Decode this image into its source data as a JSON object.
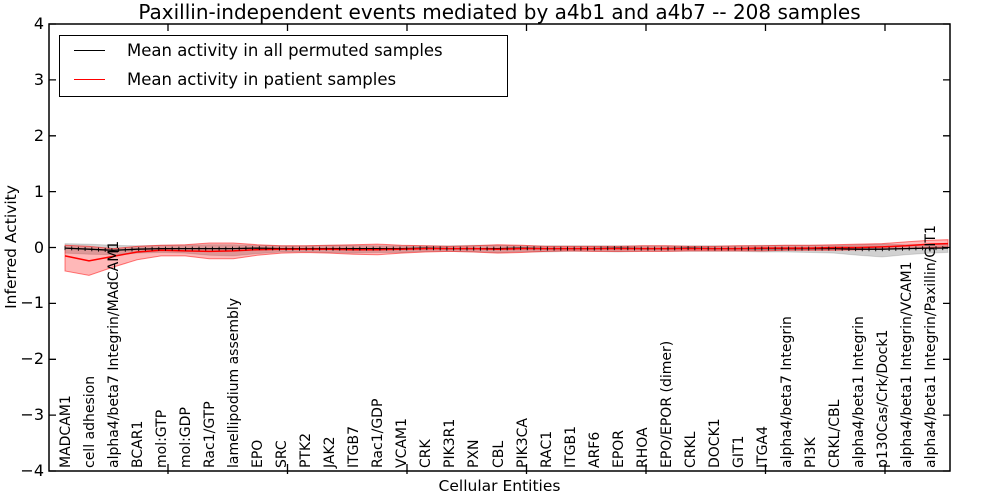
{
  "chart_data": {
    "type": "line",
    "title": "Paxillin-independent events mediated by a4b1 and a4b7 -- 208 samples",
    "xlabel": "Cellular Entities",
    "ylabel": "Inferred Activity",
    "ylim": [
      -4,
      4
    ],
    "yticks": [
      4,
      3,
      2,
      1,
      0,
      -1,
      -2,
      -3,
      -4
    ],
    "ytick_labels": [
      "4",
      "3",
      "2",
      "1",
      "0",
      "−1",
      "−2",
      "−3",
      "−4"
    ],
    "grid": false,
    "legend_position": "upper left",
    "categories": [
      "MADCAM1",
      "cell adhesion",
      "alpha4/beta7 Integrin/MAdCAM1",
      "BCAR1",
      "mol:GTP",
      "mol:GDP",
      "Rac1/GTP",
      "lamellipodium assembly",
      "EPO",
      "SRC",
      "PTK2",
      "JAK2",
      "ITGB7",
      "Rac1/GDP",
      "VCAM1",
      "CRK",
      "PIK3R1",
      "PXN",
      "CBL",
      "PIK3CA",
      "RAC1",
      "ITGB1",
      "ARF6",
      "EPOR",
      "RHOA",
      "EPO/EPOR (dimer)",
      "CRKL",
      "DOCK1",
      "GIT1",
      "ITGA4",
      "alpha4/beta7 Integrin",
      "PI3K",
      "CRKL/CBL",
      "alpha4/beta1 Integrin",
      "p130Cas/Crk/Dock1",
      "alpha4/beta1 Integrin/VCAM1",
      "alpha4/beta1 Integrin/Paxillin/GIT1"
    ],
    "x": [
      0,
      1,
      2,
      3,
      4,
      5,
      6,
      7,
      8,
      9,
      10,
      11,
      12,
      13,
      14,
      15,
      16,
      17,
      18,
      19,
      20,
      21,
      22,
      23,
      24,
      25,
      26,
      27,
      28,
      29,
      30,
      31,
      32,
      33,
      34,
      35,
      36,
      36.75
    ],
    "series": [
      {
        "name": "Mean activity in all permuted samples",
        "color": "#000000",
        "band_color": "rgba(0,0,0,0.18)",
        "values": [
          -0.01,
          -0.03,
          -0.05,
          -0.03,
          -0.02,
          -0.02,
          -0.02,
          -0.02,
          -0.01,
          -0.02,
          -0.02,
          -0.02,
          -0.02,
          -0.02,
          -0.02,
          -0.01,
          -0.02,
          -0.02,
          -0.02,
          -0.01,
          -0.02,
          -0.02,
          -0.02,
          -0.01,
          -0.02,
          -0.02,
          -0.01,
          -0.02,
          -0.02,
          -0.02,
          -0.02,
          -0.02,
          -0.02,
          -0.03,
          -0.03,
          -0.02,
          -0.01,
          -0.01
        ],
        "band_top": [
          0.07,
          0.06,
          0.04,
          0.03,
          0.04,
          0.04,
          0.05,
          0.05,
          0.04,
          0.03,
          0.03,
          0.04,
          0.04,
          0.03,
          0.03,
          0.03,
          0.03,
          0.04,
          0.04,
          0.03,
          0.03,
          0.03,
          0.03,
          0.03,
          0.03,
          0.03,
          0.03,
          0.03,
          0.03,
          0.04,
          0.04,
          0.04,
          0.04,
          0.05,
          0.06,
          0.05,
          0.06,
          0.06
        ],
        "band_bottom": [
          -0.1,
          -0.12,
          -0.13,
          -0.1,
          -0.09,
          -0.1,
          -0.14,
          -0.15,
          -0.11,
          -0.08,
          -0.08,
          -0.09,
          -0.1,
          -0.09,
          -0.09,
          -0.07,
          -0.07,
          -0.08,
          -0.09,
          -0.08,
          -0.08,
          -0.07,
          -0.07,
          -0.08,
          -0.07,
          -0.07,
          -0.07,
          -0.07,
          -0.07,
          -0.08,
          -0.08,
          -0.09,
          -0.1,
          -0.14,
          -0.17,
          -0.13,
          -0.1,
          -0.09
        ]
      },
      {
        "name": "Mean activity in patient samples",
        "color": "#ff0000",
        "band_color": "rgba(255,0,0,0.28)",
        "values": [
          -0.15,
          -0.24,
          -0.16,
          -0.08,
          -0.05,
          -0.06,
          -0.07,
          -0.06,
          -0.04,
          -0.03,
          -0.03,
          -0.03,
          -0.04,
          -0.04,
          -0.03,
          -0.02,
          -0.02,
          -0.02,
          -0.03,
          -0.02,
          -0.02,
          -0.02,
          -0.02,
          -0.02,
          -0.02,
          -0.02,
          -0.02,
          -0.02,
          -0.02,
          -0.01,
          -0.01,
          -0.01,
          0.0,
          0.0,
          0.01,
          0.03,
          0.06,
          0.07
        ],
        "band_top": [
          0.04,
          0.02,
          -0.02,
          0.02,
          0.04,
          0.05,
          0.08,
          0.08,
          0.05,
          0.03,
          0.03,
          0.04,
          0.05,
          0.06,
          0.04,
          0.03,
          0.02,
          0.03,
          0.05,
          0.04,
          0.02,
          0.02,
          0.02,
          0.02,
          0.03,
          0.03,
          0.02,
          0.02,
          0.03,
          0.03,
          0.04,
          0.04,
          0.05,
          0.06,
          0.07,
          0.1,
          0.13,
          0.14
        ],
        "band_bottom": [
          -0.42,
          -0.5,
          -0.35,
          -0.22,
          -0.15,
          -0.15,
          -0.2,
          -0.2,
          -0.14,
          -0.1,
          -0.09,
          -0.1,
          -0.12,
          -0.13,
          -0.1,
          -0.08,
          -0.07,
          -0.08,
          -0.1,
          -0.09,
          -0.07,
          -0.06,
          -0.07,
          -0.07,
          -0.07,
          -0.07,
          -0.06,
          -0.06,
          -0.06,
          -0.06,
          -0.05,
          -0.05,
          -0.05,
          -0.04,
          -0.03,
          -0.02,
          0.0,
          0.01
        ]
      }
    ]
  }
}
